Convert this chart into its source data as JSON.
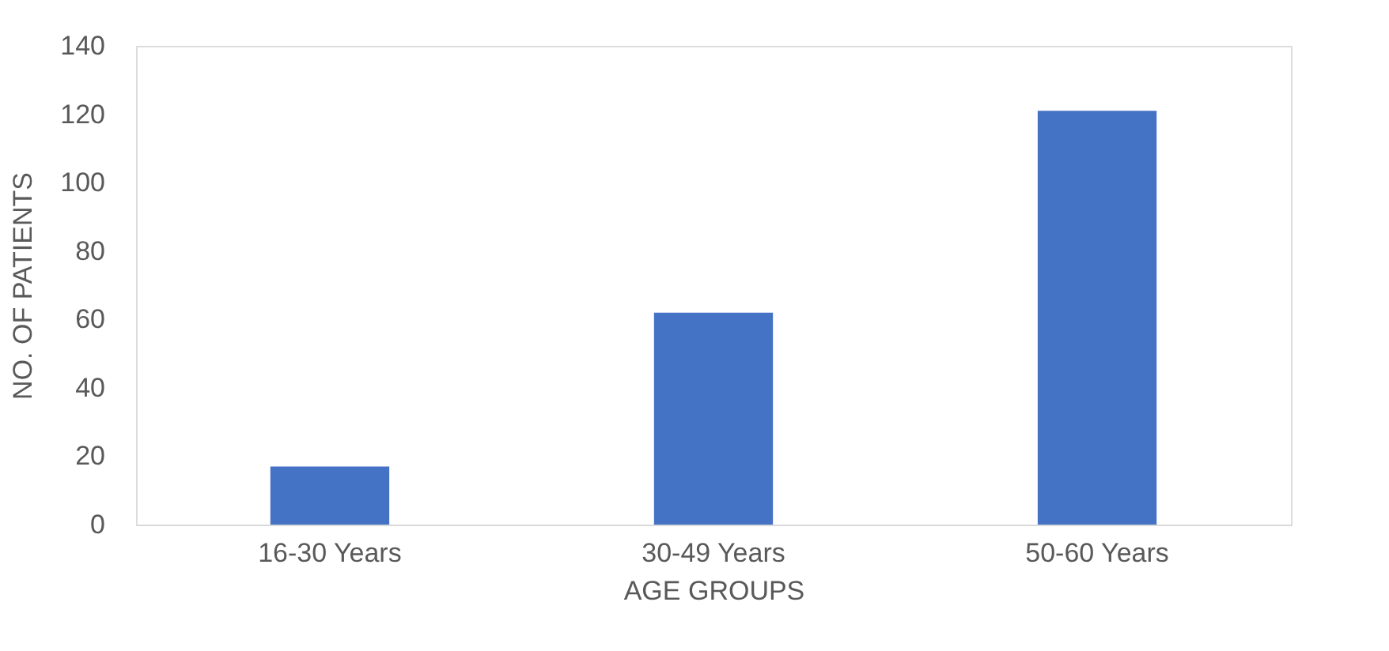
{
  "chart_data": {
    "type": "bar",
    "xlabel": "AGE GROUPS",
    "ylabel": "NO. OF PATIENTS",
    "categories": [
      "16-30 Years",
      "30-49 Years",
      "50-60 Years"
    ],
    "values": [
      17,
      62,
      121
    ],
    "color": "#4472c4",
    "ylim": [
      0,
      140
    ],
    "yticks": [
      0,
      20,
      40,
      60,
      80,
      100,
      120,
      140
    ],
    "grid": false
  }
}
